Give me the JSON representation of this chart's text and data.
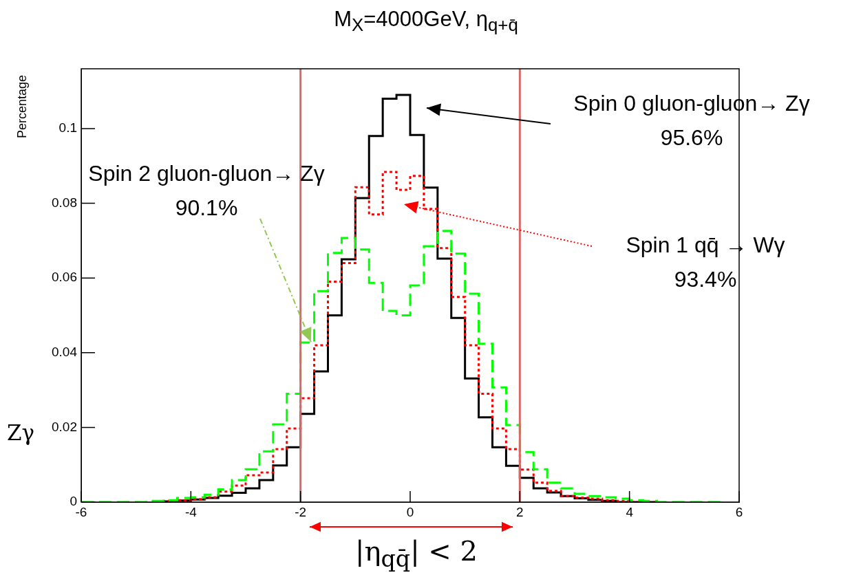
{
  "chart_data": {
    "type": "step",
    "title": "M$_{X}$=4000GeV, η$_{q+q̄}$",
    "ylabel": "Percentage",
    "x": [
      -6,
      -5.75,
      -5.5,
      -5.25,
      -5,
      -4.75,
      -4.5,
      -4.25,
      -4,
      -3.75,
      -3.5,
      -3.25,
      -3,
      -2.75,
      -2.5,
      -2.25,
      -2,
      -1.75,
      -1.5,
      -1.25,
      -1,
      -0.75,
      -0.5,
      -0.25,
      0,
      0.25,
      0.5,
      0.75,
      1,
      1.25,
      1.5,
      1.75,
      2,
      2.25,
      2.5,
      2.75,
      3,
      3.25,
      3.5,
      3.75,
      4,
      4.25,
      4.5,
      4.75,
      5,
      5.25,
      5.5,
      5.75
    ],
    "series": [
      {
        "color": "#000000",
        "line_style": "solid",
        "values": [
          null,
          null,
          null,
          null,
          null,
          null,
          0,
          0.0002,
          0.0004,
          0.0007,
          0.0011,
          0.0017,
          0.0025,
          0.0037,
          0.0059,
          0.0098,
          0.0147,
          0.0236,
          0.035,
          0.05,
          0.065,
          0.0814,
          0.098,
          0.108,
          0.109,
          0.0983,
          0.0842,
          0.0652,
          0.0493,
          0.0331,
          0.0227,
          0.0147,
          0.0097,
          0.0065,
          0.0037,
          0.0026,
          0.0016,
          0.001,
          0.0006,
          0.0003,
          0,
          0,
          0,
          null,
          null,
          null,
          null,
          null
        ]
      },
      {
        "color": "#ff0000",
        "line_style": "dotted",
        "values": [
          null,
          null,
          null,
          null,
          null,
          null,
          0,
          0.0003,
          0.0005,
          0.0008,
          0.0013,
          0.0028,
          0.0044,
          0.0072,
          0.0079,
          0.0142,
          0.0197,
          0.0278,
          0.042,
          0.059,
          0.064,
          0.0843,
          0.077,
          0.0884,
          0.0836,
          0.0873,
          0.0785,
          0.068,
          0.0549,
          0.042,
          0.029,
          0.0197,
          0.0142,
          0.0087,
          0.0052,
          0.003,
          0.0016,
          0.0012,
          0.0009,
          0.0005,
          0.0003,
          0,
          0,
          null,
          null,
          null,
          null,
          null
        ]
      },
      {
        "color": "#00ff00",
        "line_style": "dashed",
        "values": [
          0,
          0,
          0,
          0,
          0,
          0,
          0.0003,
          0.0005,
          0.0011,
          0.0013,
          0.002,
          0.0034,
          0.0059,
          0.0088,
          0.0136,
          0.0208,
          0.029,
          0.0427,
          0.0565,
          0.0667,
          0.0707,
          0.0676,
          0.0587,
          0.0512,
          0.05,
          0.058,
          0.0685,
          0.0726,
          0.0665,
          0.0558,
          0.0424,
          0.0307,
          0.0206,
          0.0134,
          0.0088,
          0.0052,
          0.0037,
          0.0022,
          0.0016,
          0.0013,
          0.0009,
          0.0005,
          0.0003,
          0,
          0,
          0,
          0,
          0
        ]
      }
    ],
    "xlim": [
      -6,
      6
    ],
    "ylim": [
      0,
      0.116
    ],
    "xticks": [
      -6,
      -4,
      -2,
      0,
      2,
      4,
      6
    ],
    "yticks": [
      0,
      0.02,
      0.04,
      0.06,
      0.08,
      0.1
    ],
    "ref_lines": [
      {
        "axis": "x",
        "value": -2,
        "color": "#d46a6a"
      },
      {
        "axis": "x",
        "value": 2,
        "color": "#d46a6a"
      }
    ],
    "annotations": [
      "Spin 0 gluon-gluon→ Zγ\n95.6%",
      {
        "text": "Spin 2 gluon-gluon→ Zγ\n90.1%",
        "x": -1.81,
        "y": 0.0429
      },
      "Spin 1 qq̄ → Wγ\n93.4%",
      "Zγ",
      "|η$_{qq̄}$| < 2"
    ]
  }
}
